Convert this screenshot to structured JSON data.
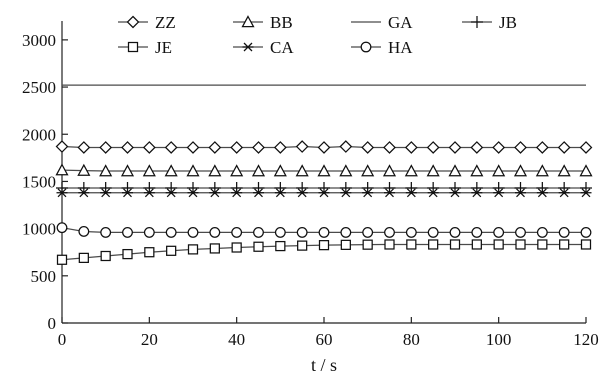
{
  "chart_data": {
    "type": "line",
    "title": "",
    "xlabel": "t / s",
    "ylabel": "",
    "x_ticks": [
      0,
      20,
      40,
      60,
      80,
      100,
      120
    ],
    "y_ticks": [
      0,
      500,
      1000,
      1500,
      2000,
      2500,
      3000
    ],
    "xlim": [
      0,
      120
    ],
    "ylim": [
      0,
      3200
    ],
    "grid": false,
    "legend_position": "top",
    "x": [
      0,
      5,
      10,
      15,
      20,
      25,
      30,
      35,
      40,
      45,
      50,
      55,
      60,
      65,
      70,
      75,
      80,
      85,
      90,
      95,
      100,
      105,
      110,
      115,
      120
    ],
    "series": [
      {
        "name": "ZZ",
        "marker": "diamond",
        "values": [
          1870,
          1860,
          1860,
          1860,
          1860,
          1860,
          1860,
          1860,
          1860,
          1860,
          1860,
          1870,
          1860,
          1870,
          1860,
          1860,
          1860,
          1860,
          1860,
          1860,
          1860,
          1860,
          1860,
          1860,
          1860
        ]
      },
      {
        "name": "BB",
        "marker": "triangle",
        "values": [
          1620,
          1615,
          1610,
          1610,
          1610,
          1610,
          1610,
          1610,
          1610,
          1610,
          1610,
          1610,
          1610,
          1610,
          1610,
          1610,
          1610,
          1610,
          1610,
          1610,
          1610,
          1610,
          1610,
          1610,
          1610
        ]
      },
      {
        "name": "GA",
        "marker": "none",
        "values": [
          2520,
          2520,
          2520,
          2520,
          2520,
          2520,
          2520,
          2520,
          2520,
          2520,
          2520,
          2520,
          2520,
          2520,
          2520,
          2520,
          2520,
          2520,
          2520,
          2520,
          2520,
          2520,
          2520,
          2520,
          2520
        ]
      },
      {
        "name": "JB",
        "marker": "plus",
        "values": [
          1430,
          1430,
          1430,
          1430,
          1430,
          1430,
          1430,
          1430,
          1430,
          1430,
          1430,
          1430,
          1430,
          1430,
          1430,
          1430,
          1430,
          1430,
          1430,
          1430,
          1430,
          1430,
          1430,
          1430,
          1430
        ]
      },
      {
        "name": "JE",
        "marker": "square",
        "values": [
          670,
          690,
          710,
          730,
          750,
          765,
          780,
          790,
          800,
          808,
          815,
          820,
          825,
          828,
          830,
          832,
          832,
          832,
          832,
          832,
          832,
          832,
          832,
          832,
          832
        ]
      },
      {
        "name": "CA",
        "marker": "star",
        "values": [
          1380,
          1380,
          1380,
          1380,
          1380,
          1380,
          1380,
          1380,
          1380,
          1380,
          1380,
          1380,
          1380,
          1380,
          1380,
          1380,
          1380,
          1380,
          1380,
          1380,
          1380,
          1380,
          1380,
          1380,
          1380
        ]
      },
      {
        "name": "HA",
        "marker": "circle",
        "values": [
          1010,
          970,
          960,
          960,
          960,
          960,
          960,
          960,
          960,
          960,
          960,
          960,
          960,
          960,
          960,
          960,
          960,
          960,
          960,
          960,
          960,
          960,
          960,
          960,
          960
        ]
      }
    ],
    "colors": {
      "axis": "#222222",
      "line": "#4a4a4a",
      "marker": "#111111"
    }
  }
}
